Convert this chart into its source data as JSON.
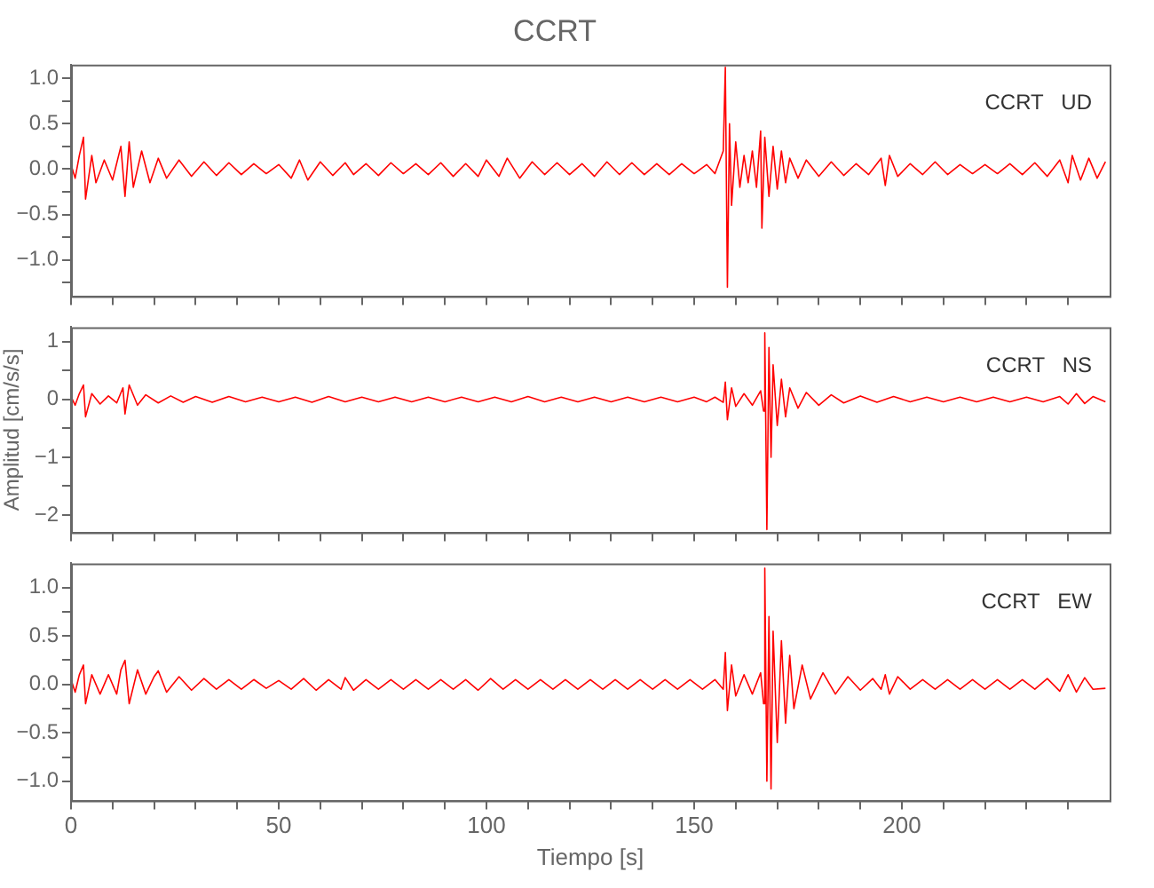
{
  "chart_data": [
    {
      "type": "line",
      "title": "CCRT",
      "annotations": [
        "CCRT   UD"
      ],
      "xlim": [
        0,
        250
      ],
      "ylim": [
        -1.4,
        1.15
      ],
      "tick_labels": "y",
      "grid": false,
      "legend": false,
      "marker": "none",
      "line_style": "solid",
      "xticks": [
        0,
        {
          "value": 10,
          "label": null
        },
        {
          "value": 20,
          "label": null
        },
        {
          "value": 30,
          "label": null
        },
        {
          "value": 40,
          "label": null
        },
        50,
        {
          "value": 60,
          "label": null
        },
        {
          "value": 70,
          "label": null
        },
        {
          "value": 80,
          "label": null
        },
        {
          "value": 90,
          "label": null
        },
        100,
        {
          "value": 110,
          "label": null
        },
        {
          "value": 120,
          "label": null
        },
        {
          "value": 130,
          "label": null
        },
        {
          "value": 140,
          "label": null
        },
        150,
        {
          "value": 160,
          "label": null
        },
        {
          "value": 170,
          "label": null
        },
        {
          "value": 180,
          "label": null
        },
        {
          "value": 190,
          "label": null
        },
        200,
        {
          "value": 210,
          "label": null
        },
        {
          "value": 220,
          "label": null
        },
        {
          "value": 230,
          "label": null
        },
        {
          "value": 240,
          "label": null
        }
      ],
      "yticks": [
        {
          "value": -1.25,
          "label": null
        },
        {
          "value": -1,
          "label": "−1.0"
        },
        {
          "value": -0.75,
          "label": null
        },
        {
          "value": -0.5,
          "label": "−0.5"
        },
        {
          "value": -0.25,
          "label": null
        },
        {
          "value": 0,
          "label": "0.0"
        },
        {
          "value": 0.25,
          "label": null
        },
        {
          "value": 0.5,
          "label": "0.5"
        },
        {
          "value": 0.75,
          "label": null
        },
        {
          "value": 1,
          "label": "1.0"
        }
      ],
      "series": [
        {
          "color": "#ff0000",
          "x": [
            0,
            1,
            2,
            3,
            3.5,
            5,
            6,
            8,
            10,
            12,
            13,
            14,
            15,
            17,
            19,
            21,
            23,
            26,
            29,
            32,
            35,
            38,
            41,
            44,
            47,
            50,
            53,
            55,
            57,
            60,
            63,
            66,
            68,
            71,
            74,
            77,
            80,
            83,
            86,
            89,
            92,
            95,
            98,
            100,
            103,
            105,
            108,
            111,
            114,
            117,
            120,
            123,
            126,
            129,
            132,
            135,
            138,
            141,
            144,
            147,
            150,
            153,
            155,
            157,
            157.5,
            158,
            158.5,
            159,
            160,
            161,
            162,
            163,
            164,
            165,
            166,
            166.3,
            167,
            168,
            169,
            170,
            171,
            172,
            173,
            175,
            177,
            180,
            183,
            186,
            189,
            192,
            195,
            196,
            197,
            199,
            202,
            205,
            208,
            211,
            214,
            217,
            220,
            223,
            226,
            229,
            232,
            235,
            238,
            240,
            241,
            243,
            245,
            247,
            249
          ],
          "values": [
            0.05,
            -0.1,
            0.15,
            0.35,
            -0.33,
            0.15,
            -0.15,
            0.1,
            -0.12,
            0.25,
            -0.3,
            0.3,
            -0.2,
            0.2,
            -0.15,
            0.12,
            -0.1,
            0.1,
            -0.08,
            0.08,
            -0.07,
            0.07,
            -0.06,
            0.06,
            -0.05,
            0.05,
            -0.1,
            0.1,
            -0.12,
            0.08,
            -0.07,
            0.07,
            -0.06,
            0.06,
            -0.07,
            0.07,
            -0.05,
            0.06,
            -0.06,
            0.07,
            -0.08,
            0.06,
            -0.08,
            0.1,
            -0.08,
            0.12,
            -0.1,
            0.08,
            -0.06,
            0.07,
            -0.06,
            0.06,
            -0.08,
            0.08,
            -0.06,
            0.07,
            -0.06,
            0.06,
            -0.06,
            0.06,
            -0.05,
            0.05,
            -0.05,
            0.2,
            1.12,
            -1.3,
            0.5,
            -0.4,
            0.3,
            -0.2,
            0.15,
            -0.15,
            0.2,
            -0.2,
            0.42,
            -0.65,
            0.35,
            -0.3,
            0.25,
            -0.22,
            0.2,
            -0.15,
            0.12,
            -0.1,
            0.1,
            -0.08,
            0.08,
            -0.07,
            0.06,
            -0.06,
            0.12,
            -0.18,
            0.15,
            -0.08,
            0.06,
            -0.06,
            0.08,
            -0.06,
            0.05,
            -0.05,
            0.05,
            -0.05,
            0.06,
            -0.06,
            0.07,
            -0.08,
            0.1,
            -0.15,
            0.15,
            -0.12,
            0.12,
            -0.1,
            0.08
          ]
        }
      ]
    },
    {
      "type": "line",
      "ylabel": "Amplitud [cm/s/s]",
      "annotations": [
        "CCRT   NS"
      ],
      "xlim": [
        0,
        250
      ],
      "ylim": [
        -2.3,
        1.25
      ],
      "tick_labels": "y",
      "grid": false,
      "legend": false,
      "marker": "none",
      "line_style": "solid",
      "xticks": [
        0,
        {
          "value": 10,
          "label": null
        },
        {
          "value": 20,
          "label": null
        },
        {
          "value": 30,
          "label": null
        },
        {
          "value": 40,
          "label": null
        },
        50,
        {
          "value": 60,
          "label": null
        },
        {
          "value": 70,
          "label": null
        },
        {
          "value": 80,
          "label": null
        },
        {
          "value": 90,
          "label": null
        },
        100,
        {
          "value": 110,
          "label": null
        },
        {
          "value": 120,
          "label": null
        },
        {
          "value": 130,
          "label": null
        },
        {
          "value": 140,
          "label": null
        },
        150,
        {
          "value": 160,
          "label": null
        },
        {
          "value": 170,
          "label": null
        },
        {
          "value": 180,
          "label": null
        },
        {
          "value": 190,
          "label": null
        },
        200,
        {
          "value": 210,
          "label": null
        },
        {
          "value": 220,
          "label": null
        },
        {
          "value": 230,
          "label": null
        },
        {
          "value": 240,
          "label": null
        }
      ],
      "yticks": [
        {
          "value": -2,
          "label": "−2"
        },
        {
          "value": -1.5,
          "label": null
        },
        {
          "value": -1,
          "label": "−1"
        },
        {
          "value": -0.5,
          "label": null
        },
        0,
        {
          "value": 0.5,
          "label": null
        },
        1
      ],
      "series": [
        {
          "color": "#ff0000",
          "x": [
            0,
            1,
            2,
            3,
            3.5,
            5,
            7,
            9,
            11,
            12.5,
            13,
            14,
            16,
            18,
            21,
            24,
            27,
            30,
            34,
            38,
            42,
            46,
            50,
            54,
            58,
            62,
            66,
            70,
            74,
            78,
            82,
            86,
            90,
            94,
            98,
            102,
            106,
            110,
            114,
            118,
            122,
            126,
            130,
            134,
            138,
            142,
            146,
            150,
            153,
            155,
            157,
            157.5,
            158,
            159,
            160,
            162,
            164,
            166,
            166.7,
            167,
            167.5,
            168,
            168.5,
            169,
            170,
            171,
            172,
            173,
            175,
            177,
            180,
            183,
            186,
            190,
            194,
            198,
            202,
            206,
            210,
            214,
            218,
            222,
            226,
            230,
            234,
            238,
            240,
            242,
            244,
            246,
            249
          ],
          "values": [
            0.05,
            -0.1,
            0.1,
            0.25,
            -0.3,
            0.1,
            -0.08,
            0.06,
            -0.06,
            0.2,
            -0.25,
            0.25,
            -0.1,
            0.08,
            -0.06,
            0.06,
            -0.05,
            0.05,
            -0.05,
            0.05,
            -0.04,
            0.04,
            -0.04,
            0.04,
            -0.05,
            0.05,
            -0.04,
            0.04,
            -0.04,
            0.04,
            -0.04,
            0.04,
            -0.04,
            0.04,
            -0.04,
            0.04,
            -0.04,
            0.05,
            -0.04,
            0.04,
            -0.04,
            0.04,
            -0.04,
            0.04,
            -0.04,
            0.04,
            -0.04,
            0.04,
            -0.04,
            0.04,
            -0.05,
            0.3,
            -0.35,
            0.2,
            -0.12,
            0.1,
            -0.1,
            0.15,
            -0.2,
            1.15,
            -2.25,
            0.9,
            -1,
            0.6,
            -0.45,
            0.35,
            -0.3,
            0.2,
            -0.15,
            0.12,
            -0.1,
            0.08,
            -0.06,
            0.06,
            -0.05,
            0.05,
            -0.04,
            0.04,
            -0.04,
            0.04,
            -0.04,
            0.04,
            -0.04,
            0.04,
            -0.04,
            0.05,
            -0.08,
            0.1,
            -0.07,
            0.05,
            -0.04
          ]
        }
      ]
    },
    {
      "type": "line",
      "xlabel": "Tiempo [s]",
      "annotations": [
        "CCRT   EW"
      ],
      "xlim": [
        0,
        250
      ],
      "ylim": [
        -1.2,
        1.25
      ],
      "grid": false,
      "legend": false,
      "marker": "none",
      "line_style": "solid",
      "xticks": [
        0,
        {
          "value": 10,
          "label": null
        },
        {
          "value": 20,
          "label": null
        },
        {
          "value": 30,
          "label": null
        },
        {
          "value": 40,
          "label": null
        },
        50,
        {
          "value": 60,
          "label": null
        },
        {
          "value": 70,
          "label": null
        },
        {
          "value": 80,
          "label": null
        },
        {
          "value": 90,
          "label": null
        },
        100,
        {
          "value": 110,
          "label": null
        },
        {
          "value": 120,
          "label": null
        },
        {
          "value": 130,
          "label": null
        },
        {
          "value": 140,
          "label": null
        },
        150,
        {
          "value": 160,
          "label": null
        },
        {
          "value": 170,
          "label": null
        },
        {
          "value": 180,
          "label": null
        },
        {
          "value": 190,
          "label": null
        },
        200,
        {
          "value": 210,
          "label": null
        },
        {
          "value": 220,
          "label": null
        },
        {
          "value": 230,
          "label": null
        },
        {
          "value": 240,
          "label": null
        }
      ],
      "yticks": [
        {
          "value": -1,
          "label": "−1.0"
        },
        {
          "value": -0.75,
          "label": null
        },
        {
          "value": -0.5,
          "label": "−0.5"
        },
        {
          "value": -0.25,
          "label": null
        },
        {
          "value": 0,
          "label": "0.0"
        },
        {
          "value": 0.25,
          "label": null
        },
        {
          "value": 0.5,
          "label": "0.5"
        },
        {
          "value": 0.75,
          "label": null
        },
        {
          "value": 1,
          "label": "1.0"
        }
      ],
      "series": [
        {
          "color": "#ff0000",
          "x": [
            0,
            1,
            2,
            3,
            3.5,
            5,
            7,
            9,
            11,
            12,
            13,
            14,
            16,
            18,
            20,
            21,
            23,
            26,
            29,
            32,
            35,
            38,
            41,
            44,
            47,
            50,
            53,
            56,
            59,
            62,
            65,
            66,
            68,
            71,
            74,
            77,
            80,
            83,
            86,
            89,
            92,
            95,
            98,
            101,
            104,
            107,
            110,
            113,
            116,
            119,
            122,
            125,
            128,
            131,
            134,
            137,
            140,
            143,
            146,
            149,
            152,
            155,
            157,
            157.5,
            158,
            159,
            160,
            162,
            164,
            166,
            166.7,
            167,
            167.5,
            168,
            168.5,
            169,
            170,
            171,
            172,
            173,
            174,
            176,
            178,
            181,
            184,
            187,
            190,
            193,
            195,
            196,
            197,
            199,
            202,
            205,
            208,
            211,
            214,
            217,
            220,
            223,
            226,
            229,
            232,
            235,
            238,
            240,
            242,
            244,
            246,
            249
          ],
          "values": [
            0.05,
            -0.08,
            0.1,
            0.2,
            -0.2,
            0.1,
            -0.1,
            0.1,
            -0.1,
            0.15,
            0.25,
            -0.2,
            0.15,
            -0.1,
            0.08,
            0.14,
            -0.08,
            0.08,
            -0.06,
            0.06,
            -0.05,
            0.05,
            -0.05,
            0.05,
            -0.04,
            0.04,
            -0.05,
            0.06,
            -0.06,
            0.05,
            -0.05,
            0.07,
            -0.06,
            0.05,
            -0.05,
            0.05,
            -0.05,
            0.05,
            -0.05,
            0.05,
            -0.05,
            0.05,
            -0.06,
            0.06,
            -0.05,
            0.05,
            -0.05,
            0.05,
            -0.05,
            0.05,
            -0.05,
            0.05,
            -0.05,
            0.05,
            -0.05,
            0.05,
            -0.05,
            0.05,
            -0.05,
            0.05,
            -0.05,
            0.05,
            -0.05,
            0.33,
            -0.27,
            0.2,
            -0.12,
            0.1,
            -0.1,
            0.12,
            -0.2,
            1.2,
            -1.0,
            0.7,
            -1.08,
            0.55,
            -0.6,
            0.45,
            -0.4,
            0.3,
            -0.25,
            0.2,
            -0.15,
            0.12,
            -0.1,
            0.08,
            -0.06,
            0.06,
            -0.05,
            0.1,
            -0.1,
            0.08,
            -0.05,
            0.05,
            -0.05,
            0.05,
            -0.05,
            0.05,
            -0.05,
            0.05,
            -0.05,
            0.05,
            -0.05,
            0.06,
            -0.07,
            0.1,
            -0.08,
            0.07,
            -0.05,
            -0.04
          ]
        }
      ]
    }
  ]
}
